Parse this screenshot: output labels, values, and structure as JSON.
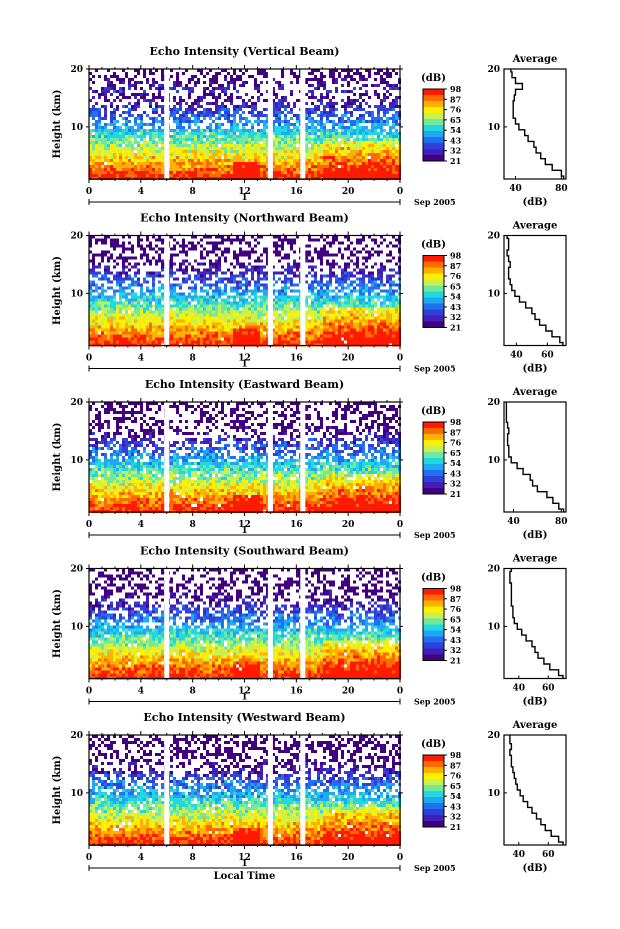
{
  "figure": {
    "x_title": "Local Time",
    "date_label": "Sep 2005",
    "day_marker": "1"
  },
  "colorbar": {
    "unit": "(dB)",
    "ticks": [
      "98",
      "87",
      "76",
      "65",
      "54",
      "43",
      "32",
      "21"
    ],
    "colors": [
      "#ff1a00",
      "#ff6a00",
      "#ffb000",
      "#fff000",
      "#c8f050",
      "#70e8a0",
      "#20d8e0",
      "#20a8f0",
      "#2070f0",
      "#3040d8",
      "#4020b8",
      "#400080"
    ]
  },
  "chart_data": [
    {
      "type": "heatmap",
      "title": "Echo Intensity (Vertical Beam)",
      "ylabel": "Height (km)",
      "x_ticks": [
        "0",
        "4",
        "8",
        "12",
        "16",
        "20",
        "0"
      ],
      "y_ticks": [
        "20",
        "10"
      ],
      "xlim": [
        0,
        24
      ],
      "ylim": [
        1,
        20
      ],
      "x_gaps_hours": [
        6,
        14,
        16.5
      ],
      "profile": {
        "title": "Average",
        "xlabel": "(dB)",
        "x_ticks": [
          "40",
          "80"
        ],
        "x_tick_values": [
          40,
          80
        ],
        "xlim": [
          30,
          84
        ],
        "y_ticks": [
          "20",
          "10"
        ],
        "heights_km": [
          1,
          2,
          3,
          4,
          5,
          6,
          7,
          8,
          9,
          10,
          11,
          12,
          13,
          14,
          15,
          16,
          17,
          18,
          19,
          20
        ],
        "values_db": [
          82,
          80,
          72,
          66,
          62,
          58,
          56,
          51,
          48,
          43,
          40,
          38,
          38,
          38,
          39,
          40,
          46,
          40,
          37,
          36
        ]
      }
    },
    {
      "type": "heatmap",
      "title": "Echo Intensity (Northward Beam)",
      "ylabel": "Height (km)",
      "x_ticks": [
        "0",
        "4",
        "8",
        "12",
        "16",
        "20",
        "0"
      ],
      "y_ticks": [
        "20",
        "10"
      ],
      "xlim": [
        0,
        24
      ],
      "ylim": [
        1,
        20
      ],
      "x_gaps_hours": [
        6,
        14,
        16.5
      ],
      "profile": {
        "title": "Average",
        "xlabel": "(dB)",
        "x_ticks": [
          "40",
          "60"
        ],
        "x_tick_values": [
          40,
          60
        ],
        "xlim": [
          32,
          72
        ],
        "y_ticks": [
          "20",
          "10"
        ],
        "heights_km": [
          1,
          2,
          3,
          4,
          5,
          6,
          7,
          8,
          9,
          10,
          11,
          12,
          13,
          14,
          15,
          16,
          17,
          18,
          19,
          20
        ],
        "values_db": [
          70,
          68,
          63,
          59,
          55,
          52,
          50,
          46,
          42,
          39,
          37,
          36,
          35,
          35,
          36,
          35,
          34,
          35,
          35,
          34
        ]
      }
    },
    {
      "type": "heatmap",
      "title": "Echo Intensity (Eastward Beam)",
      "ylabel": "Height (km)",
      "x_ticks": [
        "0",
        "4",
        "8",
        "12",
        "16",
        "20",
        "0"
      ],
      "y_ticks": [
        "20",
        "10"
      ],
      "xlim": [
        0,
        24
      ],
      "ylim": [
        1,
        20
      ],
      "x_gaps_hours": [
        6,
        14,
        16.5
      ],
      "profile": {
        "title": "Average",
        "xlabel": "(dB)",
        "x_ticks": [
          "40",
          "80"
        ],
        "x_tick_values": [
          40,
          80
        ],
        "xlim": [
          32,
          84
        ],
        "y_ticks": [
          "20",
          "10"
        ],
        "heights_km": [
          1,
          2,
          3,
          4,
          5,
          6,
          7,
          8,
          9,
          10,
          11,
          12,
          13,
          14,
          15,
          16,
          17,
          18,
          19,
          20
        ],
        "values_db": [
          82,
          78,
          73,
          68,
          60,
          56,
          54,
          48,
          43,
          38,
          36,
          36,
          35,
          35,
          36,
          35,
          34,
          34,
          34,
          34
        ]
      }
    },
    {
      "type": "heatmap",
      "title": "Echo Intensity (Southward Beam)",
      "ylabel": "Height (km)",
      "x_ticks": [
        "0",
        "4",
        "8",
        "12",
        "16",
        "20",
        "0"
      ],
      "y_ticks": [
        "20",
        "10"
      ],
      "xlim": [
        0,
        24
      ],
      "ylim": [
        1,
        20
      ],
      "x_gaps_hours": [
        6,
        14,
        16.5
      ],
      "profile": {
        "title": "Average",
        "xlabel": "(dB)",
        "x_ticks": [
          "40",
          "60"
        ],
        "x_tick_values": [
          40,
          60
        ],
        "xlim": [
          30,
          72
        ],
        "y_ticks": [
          "20",
          "10"
        ],
        "heights_km": [
          1,
          2,
          3,
          4,
          5,
          6,
          7,
          8,
          9,
          10,
          11,
          12,
          13,
          14,
          15,
          16,
          17,
          18,
          19,
          20
        ],
        "values_db": [
          70,
          67,
          61,
          57,
          53,
          51,
          49,
          45,
          42,
          39,
          37,
          36,
          36,
          35,
          35,
          35,
          35,
          34,
          34,
          35
        ]
      }
    },
    {
      "type": "heatmap",
      "title": "Echo Intensity (Westward Beam)",
      "ylabel": "Height (km)",
      "x_ticks": [
        "0",
        "4",
        "8",
        "12",
        "16",
        "20",
        "0"
      ],
      "y_ticks": [
        "20",
        "10"
      ],
      "xlim": [
        0,
        24
      ],
      "ylim": [
        1,
        20
      ],
      "x_gaps_hours": [
        6,
        14,
        16.5
      ],
      "profile": {
        "title": "Average",
        "xlabel": "(dB)",
        "x_ticks": [
          "40",
          "60"
        ],
        "x_tick_values": [
          40,
          60
        ],
        "xlim": [
          30,
          72
        ],
        "y_ticks": [
          "20",
          "10"
        ],
        "heights_km": [
          1,
          2,
          3,
          4,
          5,
          6,
          7,
          8,
          9,
          10,
          11,
          12,
          13,
          14,
          15,
          16,
          17,
          18,
          19,
          20
        ],
        "values_db": [
          70,
          67,
          62,
          58,
          55,
          52,
          49,
          46,
          43,
          41,
          39,
          38,
          37,
          36,
          35,
          35,
          34,
          35,
          34,
          34
        ]
      }
    }
  ]
}
